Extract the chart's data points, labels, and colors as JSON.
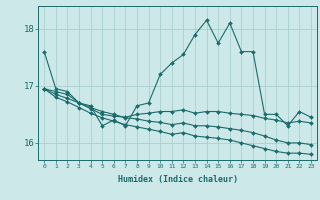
{
  "xlabel": "Humidex (Indice chaleur)",
  "ylabel": "",
  "xlim": [
    -0.5,
    23.5
  ],
  "ylim": [
    15.7,
    18.4
  ],
  "yticks": [
    16,
    17,
    18
  ],
  "xticks": [
    0,
    1,
    2,
    3,
    4,
    5,
    6,
    7,
    8,
    9,
    10,
    11,
    12,
    13,
    14,
    15,
    16,
    17,
    18,
    19,
    20,
    21,
    22,
    23
  ],
  "bg_color": "#cce8e8",
  "grid_color": "#aad0d0",
  "line_color": "#1a6b6b",
  "lines": [
    [
      17.6,
      16.95,
      16.9,
      16.7,
      16.65,
      16.3,
      16.4,
      16.3,
      16.65,
      16.7,
      17.2,
      17.4,
      17.55,
      17.9,
      18.15,
      17.75,
      18.1,
      17.6,
      17.6,
      16.5,
      16.5,
      16.3,
      16.55,
      16.45
    ],
    [
      16.95,
      16.9,
      16.85,
      16.7,
      16.6,
      16.5,
      16.47,
      16.45,
      16.5,
      16.52,
      16.55,
      16.55,
      16.58,
      16.52,
      16.55,
      16.55,
      16.52,
      16.5,
      16.48,
      16.43,
      16.4,
      16.35,
      16.38,
      16.35
    ],
    [
      16.95,
      16.85,
      16.78,
      16.7,
      16.62,
      16.55,
      16.5,
      16.44,
      16.42,
      16.38,
      16.36,
      16.32,
      16.35,
      16.3,
      16.3,
      16.28,
      16.25,
      16.22,
      16.18,
      16.12,
      16.05,
      16.0,
      16.0,
      15.97
    ],
    [
      16.95,
      16.8,
      16.72,
      16.62,
      16.52,
      16.44,
      16.38,
      16.32,
      16.28,
      16.24,
      16.2,
      16.15,
      16.18,
      16.12,
      16.1,
      16.08,
      16.05,
      16.0,
      15.95,
      15.9,
      15.85,
      15.82,
      15.82,
      15.8
    ]
  ]
}
